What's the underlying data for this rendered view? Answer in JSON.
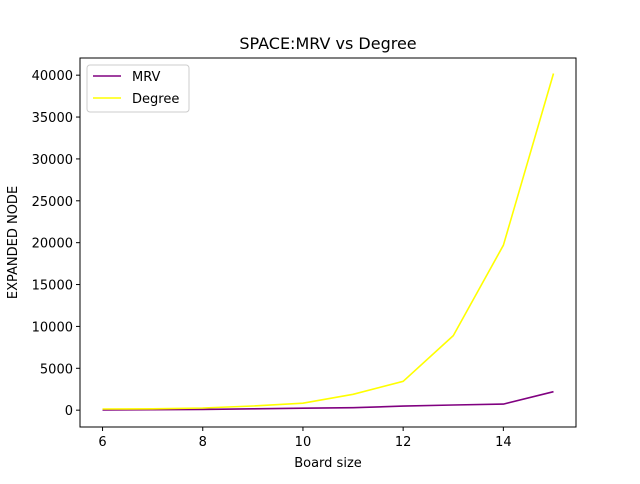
{
  "chart_data": {
    "type": "line",
    "title": "SPACE:MRV vs Degree",
    "xlabel": "Board size",
    "ylabel": "EXPANDED NODE",
    "xlim": [
      5.55,
      15.45
    ],
    "ylim": [
      -2010,
      42050
    ],
    "x": [
      6,
      7,
      8,
      9,
      10,
      11,
      12,
      13,
      14,
      15
    ],
    "xticks": [
      6,
      8,
      10,
      12,
      14
    ],
    "yticks": [
      0,
      5000,
      10000,
      15000,
      20000,
      25000,
      30000,
      35000,
      40000
    ],
    "series": [
      {
        "name": "MRV",
        "color": "#800080",
        "values": [
          30,
          50,
          90,
          160,
          230,
          300,
          480,
          620,
          720,
          2200
        ]
      },
      {
        "name": "Degree",
        "color": "#ffff00",
        "values": [
          140,
          160,
          260,
          500,
          830,
          1900,
          3450,
          8900,
          19700,
          40200
        ]
      }
    ],
    "legend_position": "upper-left",
    "grid": false
  }
}
